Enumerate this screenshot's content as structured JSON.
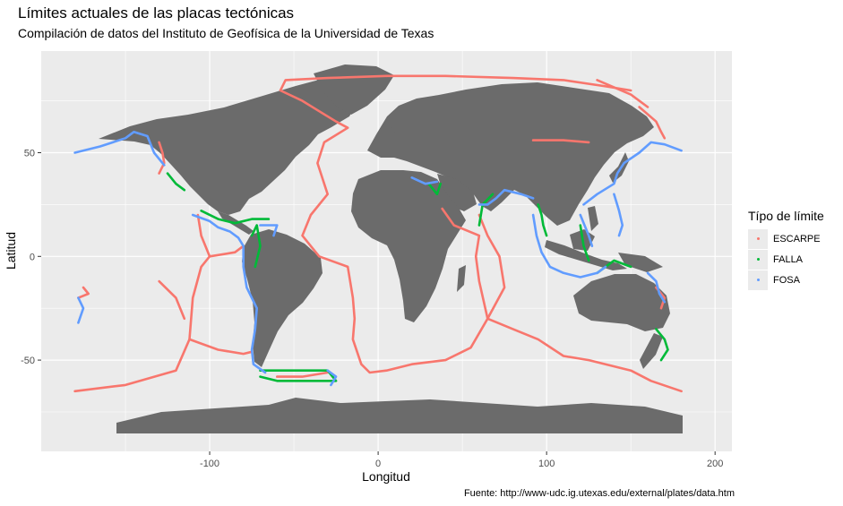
{
  "title": "Límites actuales de las placas tectónicas",
  "subtitle": "Compilación de datos del Instituto de Geofísica de la Universidad de Texas",
  "caption": "Fuente: http://www-udc.ig.utexas.edu/external/plates/data.htm",
  "legend": {
    "title": "Típo de límite",
    "items": [
      {
        "label": "ESCARPE",
        "color": "#F8766D"
      },
      {
        "label": "FALLA",
        "color": "#00BA38"
      },
      {
        "label": "FOSA",
        "color": "#619CFF"
      }
    ]
  },
  "chart_data": {
    "type": "scatter",
    "title": "Límites actuales de las placas tectónicas",
    "subtitle": "Compilación de datos del Instituto de Geofísica de la Universidad de Texas",
    "xlabel": "Longitud",
    "ylabel": "Latitud",
    "xlim": [
      -200,
      210
    ],
    "ylim": [
      -94,
      99
    ],
    "x_ticks": [
      -100,
      0,
      100,
      200
    ],
    "x_tick_labels": [
      "-100",
      "0",
      "100",
      "200"
    ],
    "y_ticks": [
      -50,
      0,
      50
    ],
    "y_tick_labels": [
      "-50",
      "0",
      "50"
    ],
    "grid": true,
    "legend_position": "right",
    "background_layer": "world land map (grey)",
    "series": [
      {
        "name": "ESCARPE",
        "color": "#F8766D",
        "segments": [
          [
            [
              5,
              87
            ],
            [
              40,
              87
            ],
            [
              80,
              86
            ],
            [
              110,
              85
            ],
            [
              135,
              82
            ],
            [
              150,
              80
            ]
          ],
          [
            [
              5,
              87
            ],
            [
              -30,
              86
            ],
            [
              -55,
              85
            ],
            [
              -58,
              80
            ],
            [
              -45,
              75
            ],
            [
              -35,
              70
            ],
            [
              -25,
              65
            ],
            [
              -18,
              62
            ],
            [
              -32,
              55
            ],
            [
              -36,
              45
            ],
            [
              -30,
              30
            ],
            [
              -40,
              20
            ],
            [
              -45,
              10
            ],
            [
              -35,
              0
            ],
            [
              -18,
              -5
            ],
            [
              -15,
              -20
            ],
            [
              -14,
              -30
            ],
            [
              -15,
              -40
            ],
            [
              -10,
              -52
            ],
            [
              -5,
              -56
            ],
            [
              5,
              -55
            ],
            [
              20,
              -52
            ],
            [
              40,
              -50
            ],
            [
              55,
              -44
            ],
            [
              65,
              -30
            ],
            [
              60,
              -12
            ],
            [
              58,
              0
            ],
            [
              60,
              10
            ],
            [
              45,
              15
            ],
            [
              38,
              23
            ]
          ],
          [
            [
              65,
              -30
            ],
            [
              80,
              -35
            ],
            [
              95,
              -40
            ],
            [
              110,
              -48
            ],
            [
              125,
              -50
            ],
            [
              150,
              -55
            ],
            [
              162,
              -60
            ],
            [
              180,
              -65
            ]
          ],
          [
            [
              65,
              -30
            ],
            [
              75,
              -15
            ],
            [
              72,
              0
            ],
            [
              65,
              10
            ],
            [
              60,
              20
            ]
          ],
          [
            [
              -30,
              -56
            ],
            [
              -45,
              -58
            ],
            [
              -60,
              -58
            ]
          ],
          [
            [
              -180,
              -65
            ],
            [
              -150,
              -62
            ],
            [
              -120,
              -55
            ],
            [
              -112,
              -40
            ],
            [
              -110,
              -20
            ],
            [
              -105,
              -5
            ],
            [
              -100,
              0
            ],
            [
              -105,
              10
            ],
            [
              -107,
              20
            ]
          ],
          [
            [
              -112,
              -40
            ],
            [
              -95,
              -45
            ],
            [
              -80,
              -47
            ],
            [
              -75,
              -46
            ]
          ],
          [
            [
              -100,
              0
            ],
            [
              -85,
              2
            ],
            [
              -80,
              5
            ]
          ],
          [
            [
              -130,
              -12
            ],
            [
              -120,
              -20
            ],
            [
              -115,
              -30
            ]
          ],
          [
            [
              130,
              85
            ],
            [
              150,
              78
            ],
            [
              160,
              72
            ]
          ],
          [
            [
              155,
              72
            ],
            [
              165,
              65
            ],
            [
              168,
              60
            ],
            [
              170,
              57
            ]
          ],
          [
            [
              -130,
              40
            ],
            [
              -127,
              45
            ],
            [
              -128,
              50
            ],
            [
              -130,
              55
            ]
          ],
          [
            [
              92,
              56
            ],
            [
              110,
              56
            ],
            [
              125,
              55
            ]
          ],
          [
            [
              -175,
              -15
            ],
            [
              -172,
              -18
            ],
            [
              -178,
              -20
            ]
          ],
          [
            [
              165,
              -15
            ],
            [
              170,
              -20
            ],
            [
              168,
              -25
            ]
          ]
        ]
      },
      {
        "name": "FALLA",
        "color": "#00BA38",
        "segments": [
          [
            [
              -125,
              40
            ],
            [
              -120,
              35
            ],
            [
              -115,
              32
            ]
          ],
          [
            [
              -105,
              22
            ],
            [
              -95,
              18
            ],
            [
              -85,
              16
            ],
            [
              -75,
              18
            ],
            [
              -65,
              18
            ]
          ],
          [
            [
              -75,
              10
            ],
            [
              -72,
              15
            ],
            [
              -70,
              5
            ],
            [
              -73,
              -5
            ]
          ],
          [
            [
              -70,
              -55
            ],
            [
              -60,
              -55
            ],
            [
              -45,
              -55
            ],
            [
              -30,
              -55
            ],
            [
              -25,
              -60
            ],
            [
              -40,
              -60
            ],
            [
              -60,
              -60
            ],
            [
              -70,
              -58
            ]
          ],
          [
            [
              30,
              35
            ],
            [
              35,
              30
            ],
            [
              37,
              35
            ]
          ],
          [
            [
              60,
              15
            ],
            [
              62,
              25
            ],
            [
              68,
              30
            ]
          ],
          [
            [
              95,
              25
            ],
            [
              97,
              20
            ],
            [
              98,
              15
            ],
            [
              100,
              10
            ]
          ],
          [
            [
              120,
              15
            ],
            [
              122,
              5
            ],
            [
              125,
              -2
            ]
          ],
          [
            [
              130,
              -8
            ],
            [
              140,
              -2
            ],
            [
              150,
              -5
            ]
          ],
          [
            [
              165,
              -35
            ],
            [
              170,
              -40
            ],
            [
              172,
              -45
            ],
            [
              168,
              -50
            ]
          ]
        ]
      },
      {
        "name": "FOSA",
        "color": "#619CFF",
        "segments": [
          [
            [
              -180,
              50
            ],
            [
              -165,
              53
            ],
            [
              -150,
              57
            ],
            [
              -145,
              60
            ],
            [
              -137,
              58
            ],
            [
              -133,
              50
            ],
            [
              -127,
              44
            ]
          ],
          [
            [
              -110,
              20
            ],
            [
              -100,
              17
            ],
            [
              -95,
              14
            ],
            [
              -88,
              12
            ],
            [
              -83,
              9
            ],
            [
              -80,
              5
            ],
            [
              -80,
              -5
            ],
            [
              -78,
              -15
            ],
            [
              -72,
              -25
            ],
            [
              -73,
              -35
            ],
            [
              -75,
              -45
            ],
            [
              -74,
              -52
            ],
            [
              -67,
              -56
            ]
          ],
          [
            [
              -70,
              15
            ],
            [
              -60,
              15
            ],
            [
              -62,
              10
            ]
          ],
          [
            [
              -30,
              -55
            ],
            [
              -25,
              -58
            ],
            [
              -28,
              -62
            ]
          ],
          [
            [
              20,
              38
            ],
            [
              28,
              35
            ],
            [
              35,
              36
            ]
          ],
          [
            [
              60,
              25
            ],
            [
              65,
              25
            ],
            [
              70,
              28
            ],
            [
              75,
              32
            ],
            [
              85,
              30
            ],
            [
              92,
              28
            ]
          ],
          [
            [
              92,
              20
            ],
            [
              94,
              10
            ],
            [
              97,
              2
            ],
            [
              102,
              -5
            ],
            [
              110,
              -8
            ],
            [
              120,
              -10
            ],
            [
              130,
              -8
            ],
            [
              135,
              -5
            ]
          ],
          [
            [
              122,
              25
            ],
            [
              130,
              30
            ],
            [
              140,
              35
            ],
            [
              142,
              40
            ],
            [
              146,
              45
            ],
            [
              155,
              50
            ],
            [
              162,
              55
            ],
            [
              170,
              54
            ],
            [
              180,
              51
            ]
          ],
          [
            [
              120,
              20
            ],
            [
              125,
              10
            ],
            [
              127,
              5
            ]
          ],
          [
            [
              140,
              30
            ],
            [
              143,
              22
            ],
            [
              145,
              15
            ],
            [
              143,
              10
            ]
          ],
          [
            [
              160,
              -8
            ],
            [
              165,
              -12
            ],
            [
              167,
              -18
            ],
            [
              170,
              -22
            ]
          ],
          [
            [
              -178,
              -20
            ],
            [
              -175,
              -25
            ],
            [
              -178,
              -32
            ]
          ]
        ]
      }
    ]
  }
}
